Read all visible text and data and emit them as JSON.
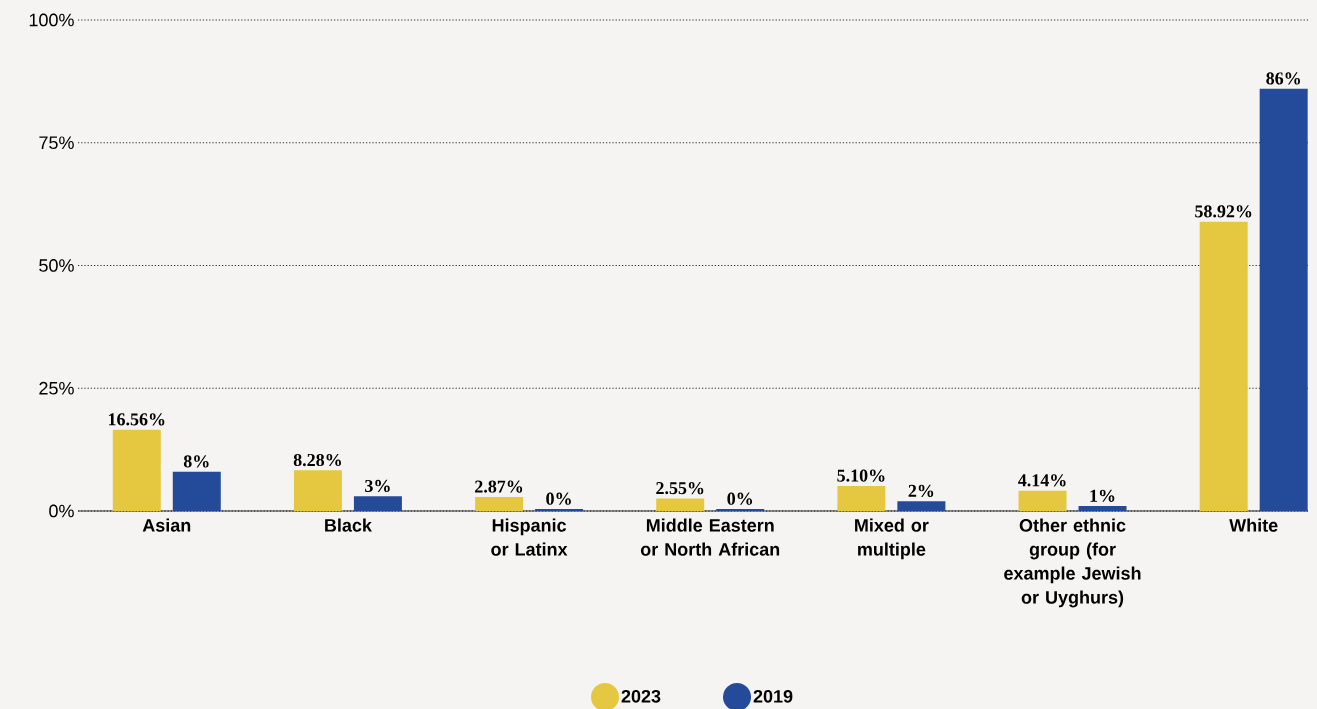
{
  "chart_data": {
    "type": "bar",
    "categories": [
      "Asian",
      "Black",
      "Hispanic or Latinx",
      "Middle Eastern or North African",
      "Mixed or multiple",
      "Other ethnic group (for example Jewish or Uyghurs)",
      "White"
    ],
    "series": [
      {
        "name": "2023",
        "color": "#e6c840",
        "values": [
          16.56,
          8.28,
          2.87,
          2.55,
          5.1,
          4.14,
          58.92
        ],
        "value_labels": [
          "16.56%",
          "8.28%",
          "2.87%",
          "2.55%",
          "5.10%",
          "4.14%",
          "58.92%"
        ]
      },
      {
        "name": "2019",
        "color": "#244a9a",
        "values": [
          8,
          3,
          0.4,
          0.4,
          2,
          1,
          86
        ],
        "value_labels": [
          "8%",
          "3%",
          "0%",
          "0%",
          "2%",
          "1%",
          "86%"
        ]
      }
    ],
    "ylim": [
      0,
      100
    ],
    "yticks": [
      {
        "value": 0,
        "label": "0%"
      },
      {
        "value": 25,
        "label": "25%"
      },
      {
        "value": 50,
        "label": "50%"
      },
      {
        "value": 75,
        "label": "75%"
      },
      {
        "value": 100,
        "label": "100%"
      }
    ],
    "grid": "y",
    "legend": "bottom"
  }
}
